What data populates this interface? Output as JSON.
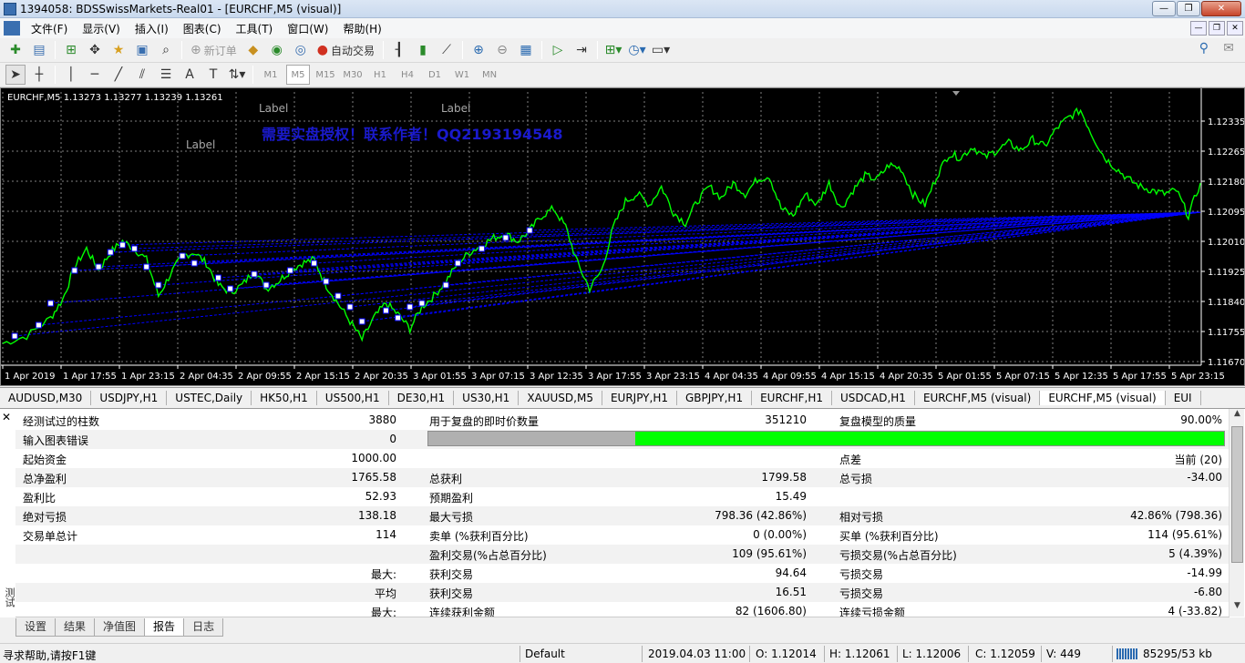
{
  "window": {
    "title": "1394058: BDSSwissMarkets-Real01 - [EURCHF,M5 (visual)]",
    "minimize": "—",
    "maximize": "❐",
    "close": "✕"
  },
  "menu": [
    "文件(F)",
    "显示(V)",
    "插入(I)",
    "图表(C)",
    "工具(T)",
    "窗口(W)",
    "帮助(H)"
  ],
  "toolbar1": {
    "new_order": "新订单",
    "auto_trading": "自动交易"
  },
  "timeframes": [
    "M1",
    "M5",
    "M15",
    "M30",
    "H1",
    "H4",
    "D1",
    "W1",
    "MN"
  ],
  "selected_timeframe": "M5",
  "chart": {
    "info": "EURCHF,M5  1.13273 1.13277 1.13239 1.13261",
    "labels": [
      "Label",
      "Label",
      "Label"
    ],
    "watermark": "需要实盘授权！联系作者！QQ2193194548",
    "price_ticks": [
      "1.12335",
      "1.12265",
      "1.12180",
      "1.12095",
      "1.12010",
      "1.11925",
      "1.11840",
      "1.11755",
      "1.11670"
    ],
    "time_ticks": [
      "1 Apr 2019",
      "1 Apr 17:55",
      "1 Apr 23:15",
      "2 Apr 04:35",
      "2 Apr 09:55",
      "2 Apr 15:15",
      "2 Apr 20:35",
      "3 Apr 01:55",
      "3 Apr 07:15",
      "3 Apr 12:35",
      "3 Apr 17:55",
      "3 Apr 23:15",
      "4 Apr 04:35",
      "4 Apr 09:55",
      "4 Apr 15:15",
      "4 Apr 20:35",
      "5 Apr 01:55",
      "5 Apr 07:15",
      "5 Apr 12:35",
      "5 Apr 17:55",
      "5 Apr 23:15"
    ],
    "colors": {
      "background": "#000000",
      "price": "#00ff00",
      "trades": "#0000ff",
      "grid": "#7f7f7f",
      "text": "#ffffff"
    },
    "price_range": [
      1.1167,
      1.1242
    ],
    "price_path": [
      [
        0,
        1.1173
      ],
      [
        2,
        1.1175
      ],
      [
        4,
        1.118
      ],
      [
        5,
        1.1185
      ],
      [
        6,
        1.1194
      ],
      [
        7,
        1.1199
      ],
      [
        8,
        1.1193
      ],
      [
        9,
        1.1198
      ],
      [
        10,
        1.1201
      ],
      [
        11,
        1.1199
      ],
      [
        12,
        1.1196
      ],
      [
        13,
        1.1186
      ],
      [
        14,
        1.1192
      ],
      [
        15,
        1.1197
      ],
      [
        16,
        1.1198
      ],
      [
        17,
        1.1195
      ],
      [
        18,
        1.1189
      ],
      [
        19,
        1.1187
      ],
      [
        20,
        1.1189
      ],
      [
        21,
        1.1193
      ],
      [
        22,
        1.1188
      ],
      [
        23,
        1.119
      ],
      [
        24,
        1.1193
      ],
      [
        25,
        1.1195
      ],
      [
        26,
        1.1196
      ],
      [
        27,
        1.1189
      ],
      [
        28,
        1.1184
      ],
      [
        29,
        1.1179
      ],
      [
        30,
        1.1174
      ],
      [
        31,
        1.118
      ],
      [
        32,
        1.1184
      ],
      [
        33,
        1.1181
      ],
      [
        34,
        1.1177
      ],
      [
        35,
        1.1183
      ],
      [
        36,
        1.1186
      ],
      [
        37,
        1.119
      ],
      [
        38,
        1.1195
      ],
      [
        39,
        1.1198
      ],
      [
        40,
        1.12
      ],
      [
        41,
        1.1202
      ],
      [
        42,
        1.1203
      ],
      [
        43,
        1.1201
      ],
      [
        44,
        1.1204
      ],
      [
        45,
        1.1208
      ],
      [
        46,
        1.121
      ],
      [
        47,
        1.1205
      ],
      [
        48,
        1.1195
      ],
      [
        49,
        1.1188
      ],
      [
        50,
        1.1193
      ],
      [
        51,
        1.1205
      ],
      [
        52,
        1.1212
      ],
      [
        53,
        1.1214
      ],
      [
        54,
        1.1211
      ],
      [
        55,
        1.1216
      ],
      [
        56,
        1.1209
      ],
      [
        57,
        1.1206
      ],
      [
        58,
        1.1212
      ],
      [
        59,
        1.1216
      ],
      [
        60,
        1.1213
      ],
      [
        61,
        1.1217
      ],
      [
        62,
        1.1214
      ],
      [
        63,
        1.1218
      ],
      [
        64,
        1.1219
      ],
      [
        65,
        1.121
      ],
      [
        66,
        1.1208
      ],
      [
        67,
        1.1214
      ],
      [
        68,
        1.1211
      ],
      [
        69,
        1.1217
      ],
      [
        70,
        1.121
      ],
      [
        71,
        1.1215
      ],
      [
        72,
        1.1219
      ],
      [
        73,
        1.1218
      ],
      [
        74,
        1.1222
      ],
      [
        75,
        1.1221
      ],
      [
        76,
        1.1214
      ],
      [
        77,
        1.1211
      ],
      [
        78,
        1.1219
      ],
      [
        79,
        1.1225
      ],
      [
        80,
        1.1224
      ],
      [
        81,
        1.1227
      ],
      [
        82,
        1.1224
      ],
      [
        83,
        1.1226
      ],
      [
        84,
        1.1228
      ],
      [
        85,
        1.1226
      ],
      [
        86,
        1.1229
      ],
      [
        87,
        1.1227
      ],
      [
        88,
        1.1232
      ],
      [
        89,
        1.1235
      ],
      [
        90,
        1.1237
      ],
      [
        91,
        1.123
      ],
      [
        92,
        1.1224
      ],
      [
        93,
        1.1221
      ],
      [
        94,
        1.1218
      ],
      [
        95,
        1.1216
      ],
      [
        96,
        1.1215
      ],
      [
        97,
        1.1214
      ],
      [
        98,
        1.1215
      ],
      [
        99,
        1.1208
      ],
      [
        100,
        1.1217
      ]
    ],
    "trade_lines": [
      [
        1,
        1.1175,
        100,
        1.1209
      ],
      [
        3,
        1.1178,
        100,
        1.1209
      ],
      [
        4,
        1.1184,
        100,
        1.1209
      ],
      [
        6,
        1.1193,
        100,
        1.1209
      ],
      [
        8,
        1.1194,
        100,
        1.1209
      ],
      [
        9,
        1.1198,
        100,
        1.1209
      ],
      [
        10,
        1.12,
        100,
        1.1209
      ],
      [
        11,
        1.1199,
        100,
        1.1209
      ],
      [
        12,
        1.1194,
        100,
        1.1209
      ],
      [
        13,
        1.1189,
        100,
        1.1209
      ],
      [
        15,
        1.1197,
        100,
        1.1209
      ],
      [
        16,
        1.1195,
        100,
        1.1209
      ],
      [
        18,
        1.1191,
        100,
        1.1209
      ],
      [
        19,
        1.1188,
        100,
        1.1209
      ],
      [
        21,
        1.1192,
        100,
        1.1209
      ],
      [
        22,
        1.1189,
        100,
        1.1209
      ],
      [
        24,
        1.1193,
        100,
        1.1209
      ],
      [
        26,
        1.1195,
        100,
        1.1209
      ],
      [
        27,
        1.119,
        100,
        1.1209
      ],
      [
        28,
        1.1186,
        100,
        1.1209
      ],
      [
        29,
        1.1183,
        100,
        1.1209
      ],
      [
        30,
        1.1179,
        100,
        1.1209
      ],
      [
        32,
        1.1182,
        100,
        1.1209
      ],
      [
        33,
        1.118,
        100,
        1.1209
      ],
      [
        34,
        1.1183,
        100,
        1.1209
      ],
      [
        35,
        1.1184,
        100,
        1.1209
      ],
      [
        37,
        1.1189,
        100,
        1.1209
      ],
      [
        38,
        1.1195,
        100,
        1.1209
      ],
      [
        40,
        1.1199,
        100,
        1.1209
      ],
      [
        42,
        1.1202,
        100,
        1.1209
      ],
      [
        44,
        1.1204,
        100,
        1.1209
      ]
    ]
  },
  "chart_tabs": [
    "AUDUSD,M30",
    "USDJPY,H1",
    "USTEC,Daily",
    "HK50,H1",
    "US500,H1",
    "DE30,H1",
    "US30,H1",
    "XAUUSD,M5",
    "EURJPY,H1",
    "GBPJPY,H1",
    "EURCHF,H1",
    "USDCAD,H1",
    "EURCHF,M5 (visual)",
    "EURCHF,M5 (visual)",
    "EUI"
  ],
  "report": {
    "rows": [
      [
        "经测试过的柱数",
        "3880",
        "用于复盘的即时价数量",
        "351210",
        "复盘模型的质量",
        "90.00%"
      ],
      [
        "输入图表错误",
        "0",
        "",
        "",
        "",
        ""
      ],
      [
        "起始资金",
        "1000.00",
        "",
        "",
        "点差",
        "当前 (20)"
      ],
      [
        "总净盈利",
        "1765.58",
        "总获利",
        "1799.58",
        "总亏损",
        "-34.00"
      ],
      [
        "盈利比",
        "52.93",
        "预期盈利",
        "15.49",
        "",
        ""
      ],
      [
        "绝对亏损",
        "138.18",
        "最大亏损",
        "798.36 (42.86%)",
        "相对亏损",
        "42.86% (798.36)"
      ],
      [
        "交易单总计",
        "114",
        "卖单 (%获利百分比)",
        "0 (0.00%)",
        "买单 (%获利百分比)",
        "114 (95.61%)"
      ],
      [
        "",
        "",
        "盈利交易(%占总百分比)",
        "109 (95.61%)",
        "亏损交易(%占总百分比)",
        "5 (4.39%)"
      ],
      [
        "",
        "最大:",
        "获利交易",
        "94.64",
        "亏损交易",
        "-14.99"
      ],
      [
        "",
        "平均",
        "获利交易",
        "16.51",
        "亏损交易",
        "-6.80"
      ],
      [
        "",
        "最大:",
        "连续获利金额",
        "82 (1606.80)",
        "连续亏损金额",
        "4 (-33.82)"
      ]
    ],
    "progress": 0.74,
    "close": "✕",
    "side_label": "测试"
  },
  "bottom_tabs": [
    "设置",
    "结果",
    "净值图",
    "报告",
    "日志"
  ],
  "active_bottom_tab": "报告",
  "status": {
    "help": "寻求帮助,请按F1键",
    "profile": "Default",
    "datetime": "2019.04.03 11:00",
    "open": "O: 1.12014",
    "high": "H: 1.12061",
    "low": "L: 1.12006",
    "close": "C: 1.12059",
    "volume": "V: 449",
    "traffic": "85295/53 kb"
  }
}
